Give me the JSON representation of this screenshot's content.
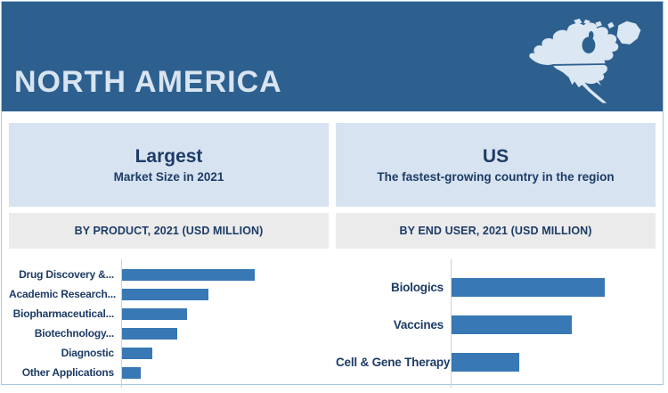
{
  "banner": {
    "title": "NORTH AMERICA"
  },
  "colors": {
    "banner_bg": "#2d608f",
    "banner_title": "#d8e4f0",
    "panel_header_bg": "#d7e3f1",
    "subheader_bg": "#ebebeb",
    "navy": "#1d3c66",
    "bar": "#3878b4",
    "frame_border": "#a8c6e2",
    "axis_line": "#d0d0d0",
    "map_fill": "#dbe7f3"
  },
  "icons": {
    "map": "north-america-map-icon"
  },
  "panels": [
    {
      "title": "Largest",
      "subtitle": "Market Size in 2021",
      "section_label": "BY PRODUCT, 2021 (USD MILLION)"
    },
    {
      "title": "US",
      "subtitle": "The fastest-growing country in the region",
      "section_label": "BY END USER, 2021 (USD MILLION)"
    }
  ],
  "chart_data": [
    {
      "type": "bar",
      "orientation": "horizontal",
      "title": "BY PRODUCT, 2021 (USD MILLION)",
      "categories": [
        "Drug Discovery &...",
        "Academic Research...",
        "Biopharmaceutical...",
        "Biotechnology...",
        "Diagnostic",
        "Other Applications"
      ],
      "values": [
        148,
        97,
        73,
        62,
        35,
        22
      ],
      "xlim": [
        0,
        230
      ],
      "value_labels_shown": false,
      "grid": false,
      "legend": "none",
      "note": "No numeric axis or data labels visible; values are relative bar lengths estimated from pixels"
    },
    {
      "type": "bar",
      "orientation": "horizontal",
      "title": "BY END USER, 2021 (USD MILLION)",
      "categories": [
        "Biologics",
        "Vaccines",
        "Cell & Gene Therapy"
      ],
      "values": [
        177,
        139,
        79
      ],
      "xlim": [
        0,
        235
      ],
      "value_labels_shown": false,
      "grid": false,
      "legend": "none",
      "note": "No numeric axis or data labels visible; values are relative bar lengths estimated from pixels"
    }
  ]
}
